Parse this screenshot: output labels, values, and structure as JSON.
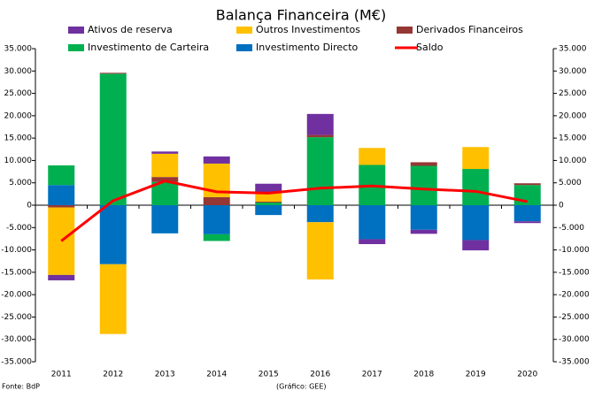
{
  "chart_data": {
    "type": "bar",
    "stacked": true,
    "title": "Balança Financeira (M€)",
    "source": "Fonte: BdP",
    "credit": "(Gráfico: GEE)",
    "categories": [
      "2011",
      "2012",
      "2013",
      "2014",
      "2015",
      "2016",
      "2017",
      "2018",
      "2019",
      "2020"
    ],
    "series": [
      {
        "name": "Ativos de reserva",
        "color": "#7030a0",
        "values": [
          -1200,
          0,
          500,
          1600,
          2000,
          4700,
          -1100,
          -900,
          -2300,
          -400
        ]
      },
      {
        "name": "Outros Investimentos",
        "color": "#ffc000",
        "values": [
          -15100,
          -15600,
          5200,
          7500,
          2000,
          -12800,
          3800,
          0,
          4900,
          0
        ]
      },
      {
        "name": "Derivados Financeiros",
        "color": "#953735",
        "values": [
          -500,
          200,
          1100,
          1800,
          200,
          500,
          0,
          800,
          0,
          400
        ]
      },
      {
        "name": "Investimento de Carteira",
        "color": "#00b050",
        "values": [
          4400,
          29400,
          5200,
          -1500,
          600,
          15200,
          9000,
          8800,
          8100,
          4500
        ]
      },
      {
        "name": "Investimento Directo",
        "color": "#0070c0",
        "values": [
          4500,
          -13200,
          -6300,
          -6500,
          -2200,
          -3800,
          -7600,
          -5500,
          -7800,
          -3600
        ]
      },
      {
        "name": "Saldo",
        "type": "line",
        "color": "#ff0000",
        "values": [
          -8000,
          1000,
          5400,
          3000,
          2700,
          3800,
          4300,
          3600,
          3100,
          800
        ]
      }
    ],
    "ylim": [
      -35000,
      35000
    ],
    "yticks": [
      {
        "value": -35000,
        "label": "-35.000"
      },
      {
        "value": -30000,
        "label": "-30.000"
      },
      {
        "value": -25000,
        "label": "-25.000"
      },
      {
        "value": -20000,
        "label": "-20.000"
      },
      {
        "value": -15000,
        "label": "-15.000"
      },
      {
        "value": -10000,
        "label": "-10.000"
      },
      {
        "value": -5000,
        "label": "-5.000"
      },
      0,
      {
        "value": 5000,
        "label": "5.000"
      },
      {
        "value": 10000,
        "label": "10.000"
      },
      {
        "value": 15000,
        "label": "15.000"
      },
      {
        "value": 20000,
        "label": "20.000"
      },
      {
        "value": 25000,
        "label": "25.000"
      },
      {
        "value": 30000,
        "label": "30.000"
      },
      {
        "value": 35000,
        "label": "35.000"
      }
    ],
    "y2lim": [
      -35000,
      35000
    ],
    "y2ticks": [
      {
        "value": -35000,
        "label": "-35.000"
      },
      {
        "value": -30000,
        "label": "-30.000"
      },
      {
        "value": -25000,
        "label": "-25.000"
      },
      {
        "value": -20000,
        "label": "-20.000"
      },
      {
        "value": -15000,
        "label": "-15.000"
      },
      {
        "value": -10000,
        "label": "-10.000"
      },
      {
        "value": -5000,
        "label": "-5.000"
      },
      0,
      {
        "value": 5000,
        "label": "5.000"
      },
      {
        "value": 10000,
        "label": "10.000"
      },
      {
        "value": 15000,
        "label": "15.000"
      },
      {
        "value": 20000,
        "label": "20.000"
      },
      {
        "value": 25000,
        "label": "25.000"
      },
      {
        "value": 30000,
        "label": "30.000"
      },
      {
        "value": 35000,
        "label": "35.000"
      }
    ],
    "grid": false
  }
}
